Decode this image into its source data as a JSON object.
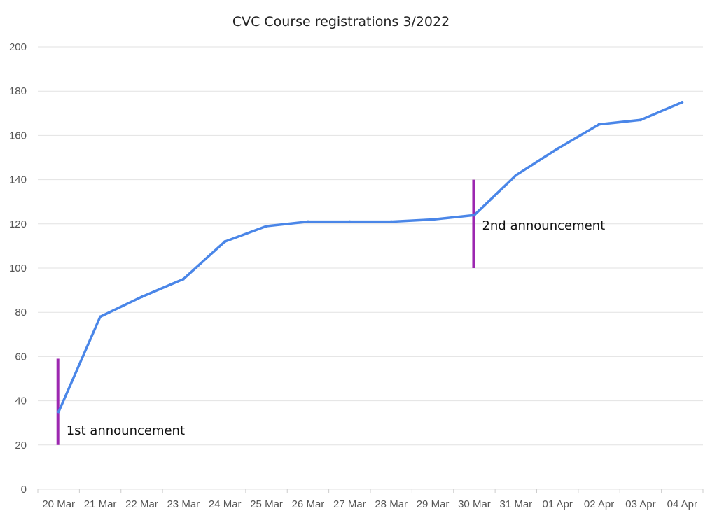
{
  "chart_data": {
    "type": "line",
    "title": "CVC Course registrations 3/2022",
    "xlabel": "",
    "ylabel": "",
    "categories": [
      "20 Mar",
      "21 Mar",
      "22 Mar",
      "23 Mar",
      "24 Mar",
      "25 Mar",
      "26 Mar",
      "27 Mar",
      "28 Mar",
      "29 Mar",
      "30 Mar",
      "31 Mar",
      "01 Apr",
      "02 Apr",
      "03 Apr",
      "04 Apr"
    ],
    "y_ticks": [
      "0",
      "20",
      "40",
      "60",
      "80",
      "100",
      "120",
      "140",
      "160",
      "180",
      "200"
    ],
    "ylim": [
      0,
      200
    ],
    "grid": true,
    "legend": "none",
    "series": [
      {
        "color": "#4a86e8",
        "values": [
          35,
          78,
          87,
          95,
          112,
          119,
          121,
          121,
          121,
          122,
          124,
          142,
          154,
          165,
          167,
          175
        ]
      }
    ],
    "annotations": [
      {
        "text": "1st announcement",
        "x_category": "20 Mar",
        "y_range": [
          20,
          59
        ],
        "color": "#9c27b0"
      },
      {
        "text": "2nd announcement",
        "x_category": "30 Mar",
        "y_range": [
          100,
          140
        ],
        "color": "#9c27b0"
      }
    ]
  }
}
